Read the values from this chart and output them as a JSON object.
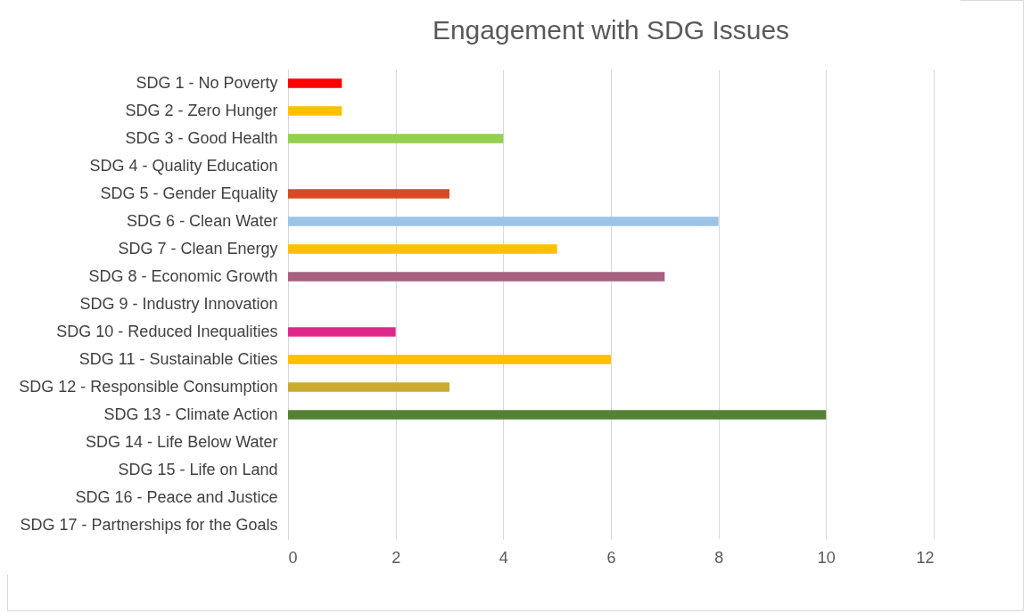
{
  "chart_data": {
    "type": "bar",
    "orientation": "horizontal",
    "title": "Engagement with SDG Issues",
    "categories": [
      "SDG 1 - No Poverty",
      "SDG 2 - Zero Hunger",
      "SDG 3 - Good Health",
      "SDG 4 - Quality Education",
      "SDG 5 - Gender Equality",
      "SDG 6 - Clean Water",
      "SDG 7 - Clean Energy",
      "SDG 8 - Economic Growth",
      "SDG 9 - Industry Innovation",
      "SDG 10 - Reduced Inequalities",
      "SDG 11 - Sustainable Cities",
      "SDG 12 - Responsible Consumption",
      "SDG 13 - Climate Action",
      "SDG 14 - Life Below Water",
      "SDG 15 - Life on Land",
      "SDG 16 - Peace and Justice",
      "SDG 17 - Partnerships for the Goals"
    ],
    "values": [
      1,
      1,
      4,
      0,
      3,
      8,
      5,
      7,
      0,
      2,
      6,
      3,
      10,
      0,
      0,
      0,
      0
    ],
    "colors": [
      "#ff0000",
      "#ffc000",
      "#92d050",
      "#4472c4",
      "#d84a26",
      "#9dc3e6",
      "#ffc000",
      "#a5617f",
      "#ed7d31",
      "#e0288a",
      "#ffc000",
      "#c9aa2e",
      "#548235",
      "#5b9bd5",
      "#70ad47",
      "#264478",
      "#9e480e"
    ],
    "xlim": [
      0,
      12
    ],
    "xticks": [
      0,
      2,
      4,
      6,
      8,
      10,
      12
    ],
    "grid": "x",
    "legend": false
  }
}
